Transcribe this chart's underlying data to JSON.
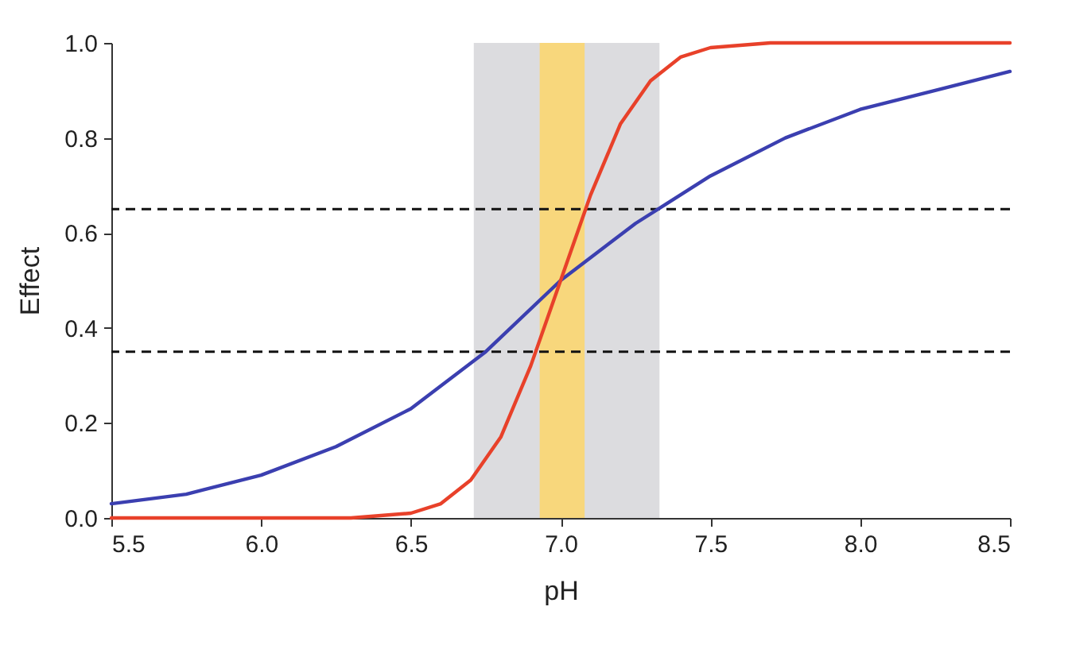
{
  "chart_data": {
    "type": "line",
    "xlabel": "pH",
    "ylabel": "Effect",
    "xlim": [
      5.5,
      8.5
    ],
    "xticks": [
      5.5,
      {
        "value": 6,
        "label": "6.0"
      },
      6.5,
      {
        "value": 7,
        "label": "7.0"
      },
      7.5,
      {
        "value": 8,
        "label": "8.0"
      },
      8.5
    ],
    "ylim": [
      0,
      1
    ],
    "yticks": [
      {
        "value": 0,
        "label": "0.0"
      },
      0.2,
      0.4,
      0.6,
      0.8,
      {
        "value": 1,
        "label": "1.0"
      }
    ],
    "grid": false,
    "marker": "none",
    "line_style": "solid",
    "bands": [
      {
        "axis": "x",
        "from": 6.71,
        "to": 7.33,
        "color": "#dcdcdf"
      },
      {
        "axis": "x",
        "from": 6.93,
        "to": 7.08,
        "color": "#f8d77c"
      }
    ],
    "ref_lines": [
      {
        "axis": "y",
        "value": 0.65,
        "line_style": "dashed",
        "color": "#111111"
      },
      {
        "axis": "y",
        "value": 0.35,
        "line_style": "dashed",
        "color": "#111111"
      }
    ],
    "series": [
      {
        "color": "#3b3fb0",
        "x": [
          5.5,
          5.75,
          6.0,
          6.25,
          6.5,
          6.75,
          7.0,
          7.25,
          7.5,
          7.75,
          8.0,
          8.25,
          8.5
        ],
        "values": [
          0.03,
          0.05,
          0.09,
          0.15,
          0.23,
          0.35,
          0.5,
          0.62,
          0.72,
          0.8,
          0.86,
          0.9,
          0.94
        ]
      },
      {
        "color": "#e8412a",
        "x": [
          5.5,
          6.0,
          6.3,
          6.5,
          6.6,
          6.7,
          6.8,
          6.9,
          7.0,
          7.1,
          7.2,
          7.3,
          7.4,
          7.5,
          7.7,
          8.0,
          8.5
        ],
        "values": [
          0,
          0,
          0,
          0.01,
          0.03,
          0.08,
          0.17,
          0.32,
          0.5,
          0.68,
          0.83,
          0.92,
          0.97,
          0.99,
          1,
          1,
          1
        ]
      }
    ]
  }
}
